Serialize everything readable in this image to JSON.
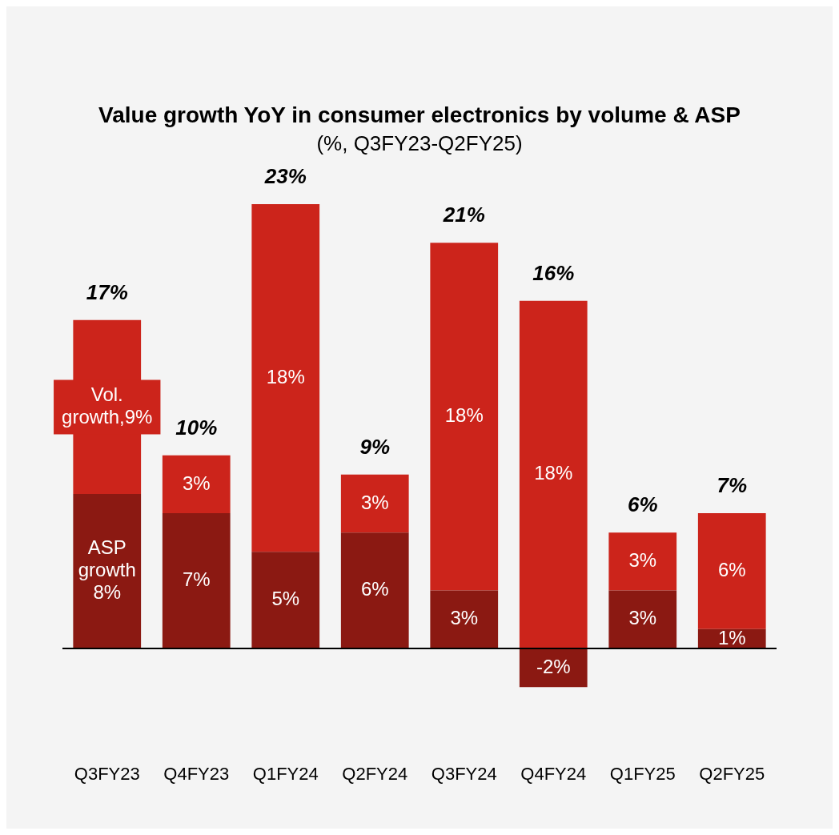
{
  "chart_data": {
    "type": "bar",
    "title": "Value growth YoY in consumer electronics by volume & ASP",
    "subtitle": "(%, Q3FY23-Q2FY25)",
    "categories": [
      "Q3FY23",
      "Q4FY23",
      "Q1FY24",
      "Q2FY24",
      "Q3FY24",
      "Q4FY24",
      "Q1FY25",
      "Q2FY25"
    ],
    "stacked": true,
    "series": [
      {
        "color": "#8b1912",
        "values": [
          8,
          7,
          5,
          6,
          3,
          -2,
          3,
          1
        ],
        "value_labels": [
          "ASP growth 8%",
          "7%",
          "5%",
          "6%",
          "3%",
          "-2%",
          "3%",
          "1%"
        ]
      },
      {
        "color": "#cc241b",
        "values": [
          9,
          3,
          18,
          3,
          18,
          18,
          3,
          6
        ],
        "value_labels": [
          "Vol. growth,9%",
          "3%",
          "18%",
          "3%",
          "18%",
          "18%",
          "3%",
          "6%"
        ]
      }
    ],
    "totals": [
      "17%",
      "10%",
      "23%",
      "9%",
      "21%",
      "16%",
      "6%",
      "7%"
    ],
    "ref_lines": [
      {
        "axis": "y",
        "value": 0,
        "color": "#000000"
      }
    ],
    "tick_labels": "x",
    "grid": false,
    "legend": false
  }
}
